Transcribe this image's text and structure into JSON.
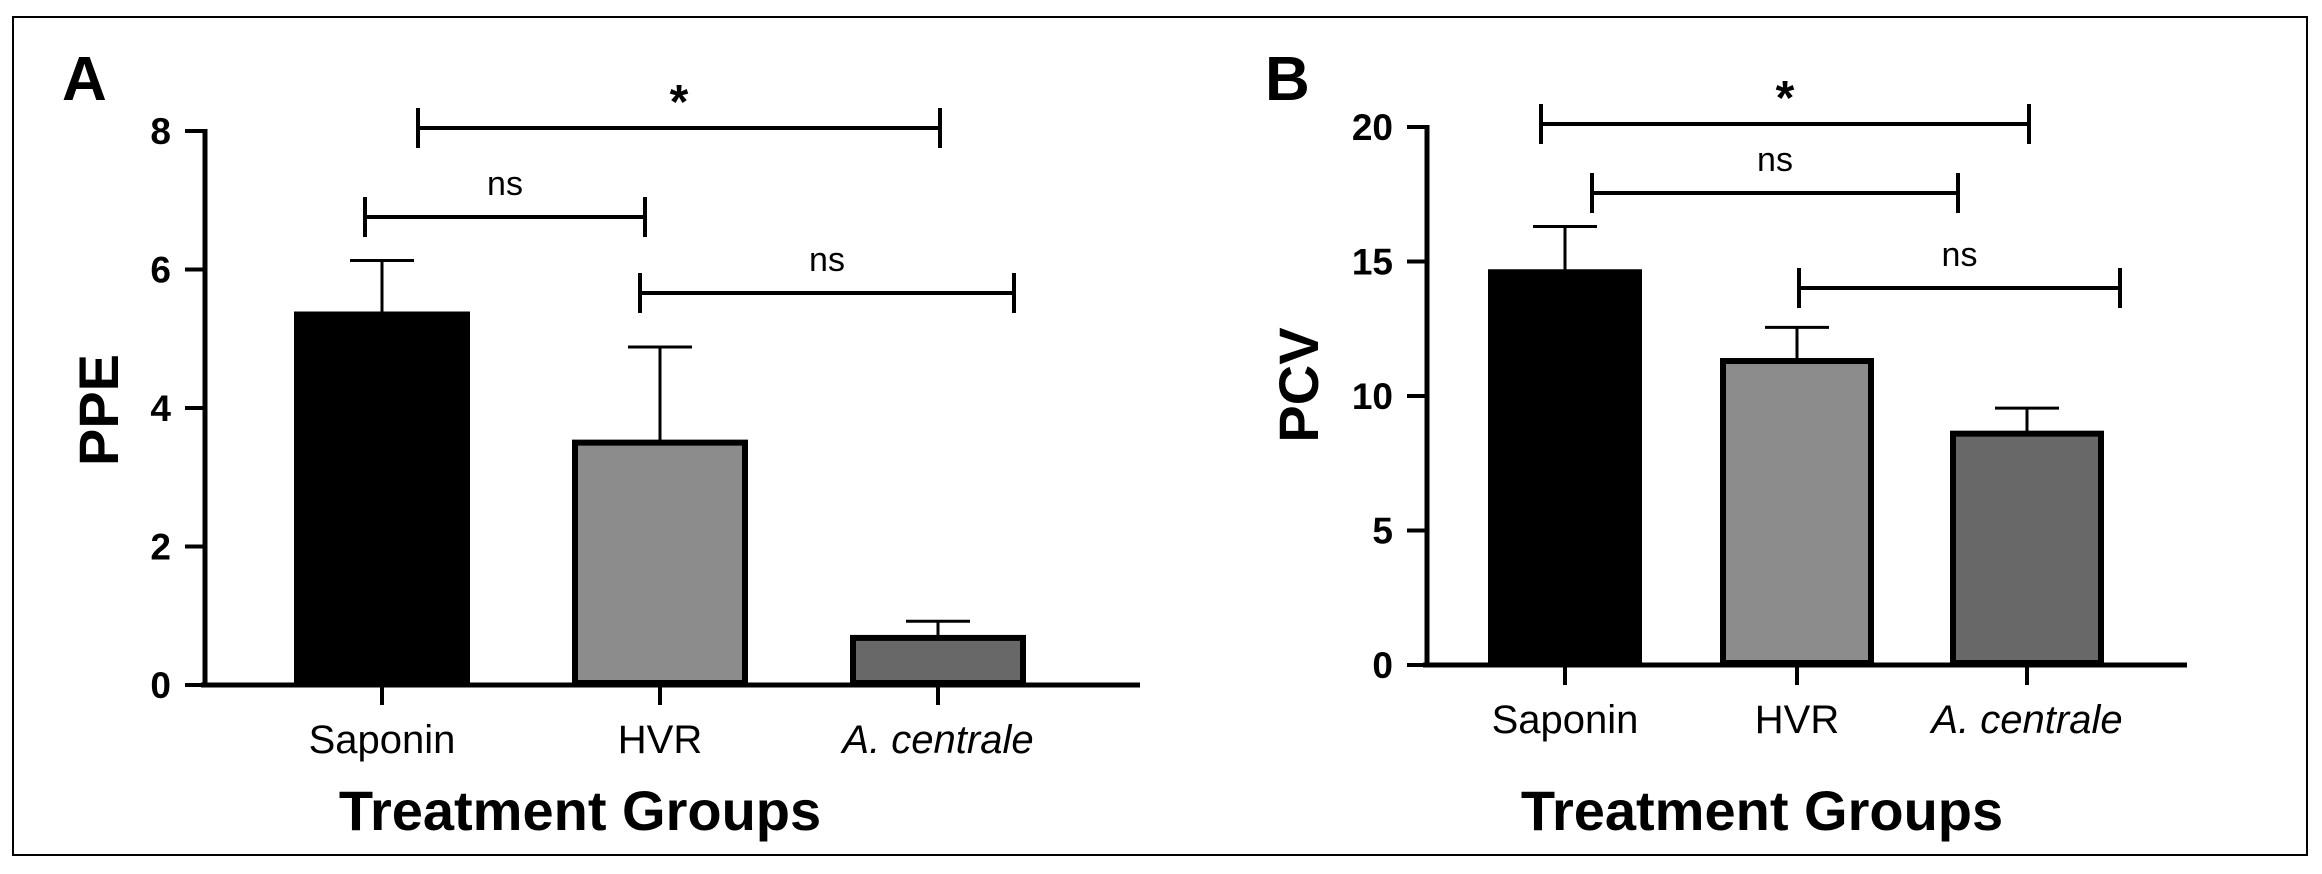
{
  "colors": {
    "saponin": "#000000",
    "hvr": "#8c8c8c",
    "acentrale": "#686868"
  },
  "chart_data": [
    {
      "panel": "A",
      "type": "bar",
      "categories": [
        "Saponin",
        "HVR",
        "A. centrale"
      ],
      "values": [
        5.35,
        3.5,
        0.68
      ],
      "errors": [
        0.78,
        1.38,
        0.24
      ],
      "ylabel": "PPE",
      "xlabel": "Treatment Groups",
      "ylim": [
        0,
        8
      ],
      "yticks": [
        "0",
        "2",
        "4",
        "6",
        "8"
      ],
      "comparisons": [
        {
          "from": "Saponin",
          "to": "A. centrale",
          "label": "*"
        },
        {
          "from": "Saponin",
          "to": "HVR",
          "label": "ns"
        },
        {
          "from": "HVR",
          "to": "A. centrale",
          "label": "ns"
        }
      ]
    },
    {
      "panel": "B",
      "type": "bar",
      "categories": [
        "Saponin",
        "HVR",
        "A. centrale"
      ],
      "values": [
        14.6,
        11.3,
        8.6
      ],
      "errors": [
        1.7,
        1.25,
        0.95
      ],
      "ylabel": "PCV",
      "xlabel": "Treatment Groups",
      "ylim": [
        0,
        20
      ],
      "yticks": [
        "0",
        "5",
        "10",
        "15",
        "20"
      ],
      "comparisons": [
        {
          "from": "Saponin",
          "to": "A. centrale",
          "label": "*"
        },
        {
          "from": "Saponin",
          "to": "HVR",
          "label": "ns"
        },
        {
          "from": "HVR",
          "to": "A. centrale",
          "label": "ns"
        }
      ]
    }
  ]
}
